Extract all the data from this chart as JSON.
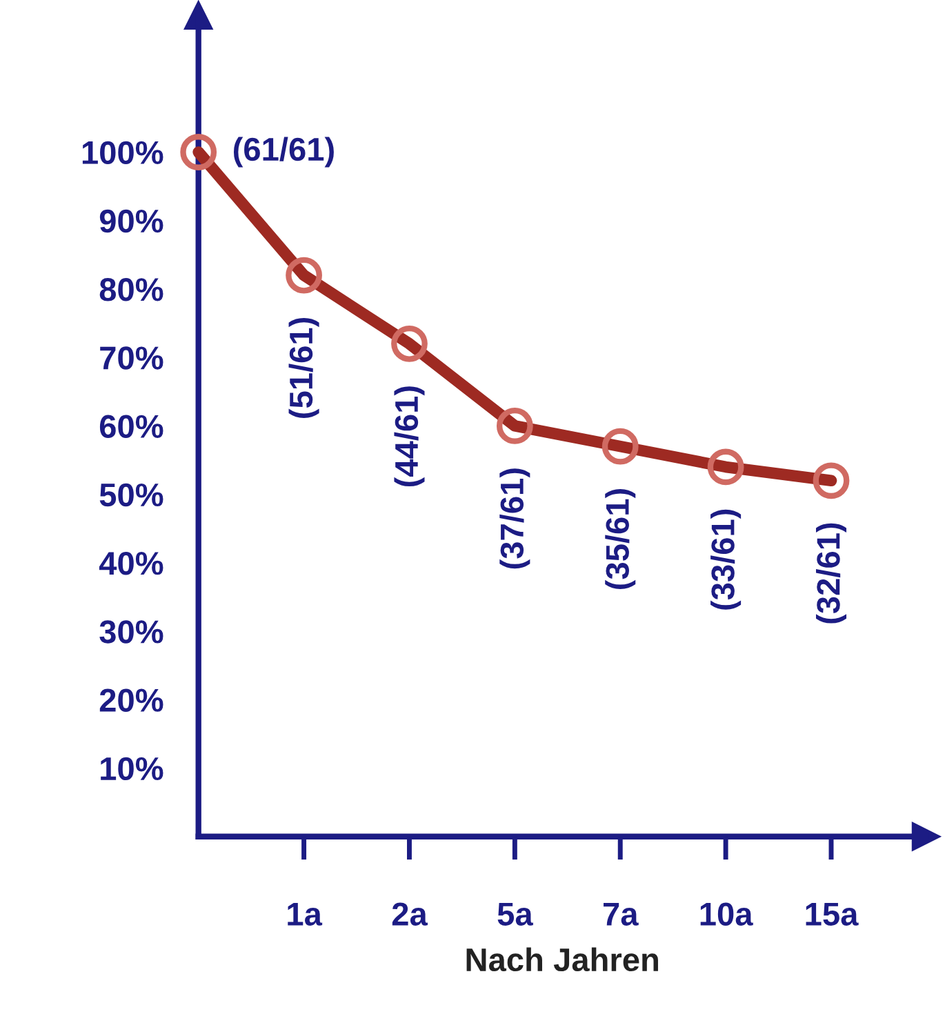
{
  "chart_data": {
    "type": "line",
    "xlabel": "Nach Jahren",
    "categories": [
      null,
      "1a",
      "2a",
      "5a",
      "7a",
      "10a",
      "15a"
    ],
    "series": [
      {
        "color": "#9e2a22",
        "values": [
          100,
          82,
          72,
          60,
          57,
          54,
          52
        ],
        "value_labels": [
          "(61/61)",
          "(51/61)",
          "(44/61)",
          "(37/61)",
          "(35/61)",
          "(33/61)",
          "(32/61)"
        ]
      }
    ],
    "ylim": [
      0,
      120
    ],
    "yticks": [
      {
        "value": 10,
        "label": "10%"
      },
      {
        "value": 20,
        "label": "20%"
      },
      {
        "value": 30,
        "label": "30%"
      },
      {
        "value": 40,
        "label": "40%"
      },
      {
        "value": 50,
        "label": "50%"
      },
      {
        "value": 60,
        "label": "60%"
      },
      {
        "value": 70,
        "label": "70%"
      },
      {
        "value": 80,
        "label": "80%"
      },
      {
        "value": 90,
        "label": "90%"
      },
      {
        "value": 100,
        "label": "100%"
      }
    ],
    "marker": "circle",
    "line_style": "solid",
    "grid": false,
    "legend": false
  }
}
